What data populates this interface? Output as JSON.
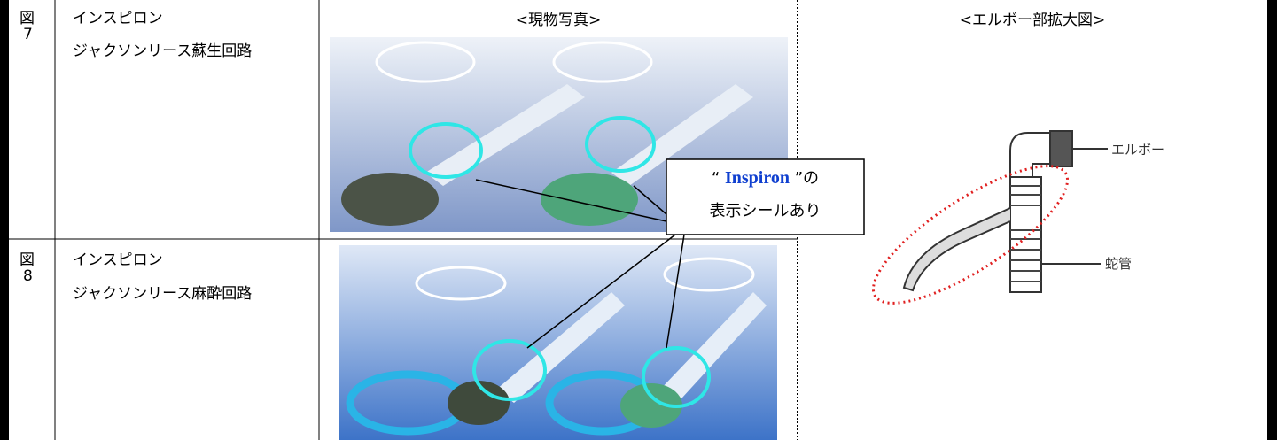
{
  "headers": {
    "photo": "<現物写真>",
    "elbow": "<エルボー部拡大図>"
  },
  "rows": [
    {
      "fig_label": "図",
      "fig_number": "7",
      "name_lines": [
        "インスピロン",
        "ジャクソンリース蘇生回路"
      ]
    },
    {
      "fig_label": "図",
      "fig_number": "8",
      "name_lines": [
        "インスピロン",
        "ジャクソンリース麻酔回路"
      ]
    }
  ],
  "callout": {
    "open_quote": "“",
    "brand": "Inspiron",
    "close_quote": "”の",
    "line2": "表示シールあり"
  },
  "diagram_labels": [
    "エルボー",
    "蛇管"
  ]
}
